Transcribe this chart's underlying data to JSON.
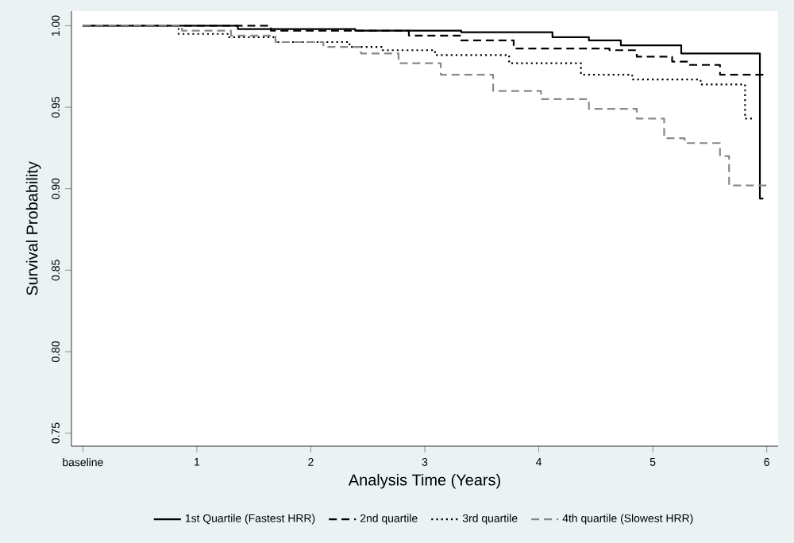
{
  "chart_data": {
    "type": "step",
    "xlabel": "Analysis Time (Years)",
    "ylabel": "Survival Probability",
    "xlim": [
      -0.1,
      6.1
    ],
    "ylim": [
      0.742,
      1.009
    ],
    "xticks": [
      {
        "value": 0,
        "label": "baseline"
      },
      1,
      2,
      3,
      4,
      5,
      6
    ],
    "yticks": [
      {
        "value": 0.75,
        "label": "0.75"
      },
      {
        "value": 0.8,
        "label": "0.80"
      },
      {
        "value": 0.85,
        "label": "0.85"
      },
      {
        "value": 0.9,
        "label": "0.90"
      },
      {
        "value": 0.95,
        "label": "0.95"
      },
      {
        "value": 1.0,
        "label": "1.00"
      }
    ],
    "grid": false,
    "legend": "bottom",
    "series": [
      {
        "name": "1st Quartile (Fastest HRR)",
        "color": "#000000",
        "line_style": "solid",
        "x": [
          0,
          1.36,
          2.39,
          3.32,
          4.12,
          4.44,
          4.72,
          5.25,
          5.94,
          5.97
        ],
        "values": [
          1.0,
          0.998,
          0.997,
          0.996,
          0.993,
          0.991,
          0.988,
          0.983,
          0.894,
          0.894
        ]
      },
      {
        "name": "2nd quartile",
        "color": "#000000",
        "line_style": "dashed",
        "x": [
          0,
          1.65,
          2.86,
          3.32,
          3.78,
          4.62,
          4.86,
          5.17,
          5.31,
          5.59,
          6.0
        ],
        "values": [
          1.0,
          0.997,
          0.994,
          0.991,
          0.986,
          0.985,
          0.981,
          0.978,
          0.976,
          0.97,
          0.97
        ]
      },
      {
        "name": "3rd quartile",
        "color": "#000000",
        "line_style": "dotted",
        "x": [
          0,
          0.84,
          1.27,
          1.69,
          2.34,
          2.63,
          3.09,
          3.74,
          4.37,
          4.82,
          5.42,
          5.81,
          5.87
        ],
        "values": [
          1.0,
          0.995,
          0.993,
          0.99,
          0.987,
          0.985,
          0.982,
          0.977,
          0.97,
          0.967,
          0.964,
          0.943,
          0.943
        ]
      },
      {
        "name": "4th quartile (Slowest HRR)",
        "color": "#888888",
        "line_style": "dashed",
        "x": [
          0,
          0.87,
          1.3,
          1.69,
          2.11,
          2.44,
          2.77,
          3.14,
          3.6,
          4.02,
          4.44,
          4.86,
          5.1,
          5.28,
          5.59,
          5.67,
          6.0
        ],
        "values": [
          1.0,
          0.997,
          0.994,
          0.99,
          0.987,
          0.983,
          0.977,
          0.97,
          0.96,
          0.955,
          0.949,
          0.943,
          0.931,
          0.928,
          0.92,
          0.902,
          0.902
        ]
      }
    ]
  }
}
